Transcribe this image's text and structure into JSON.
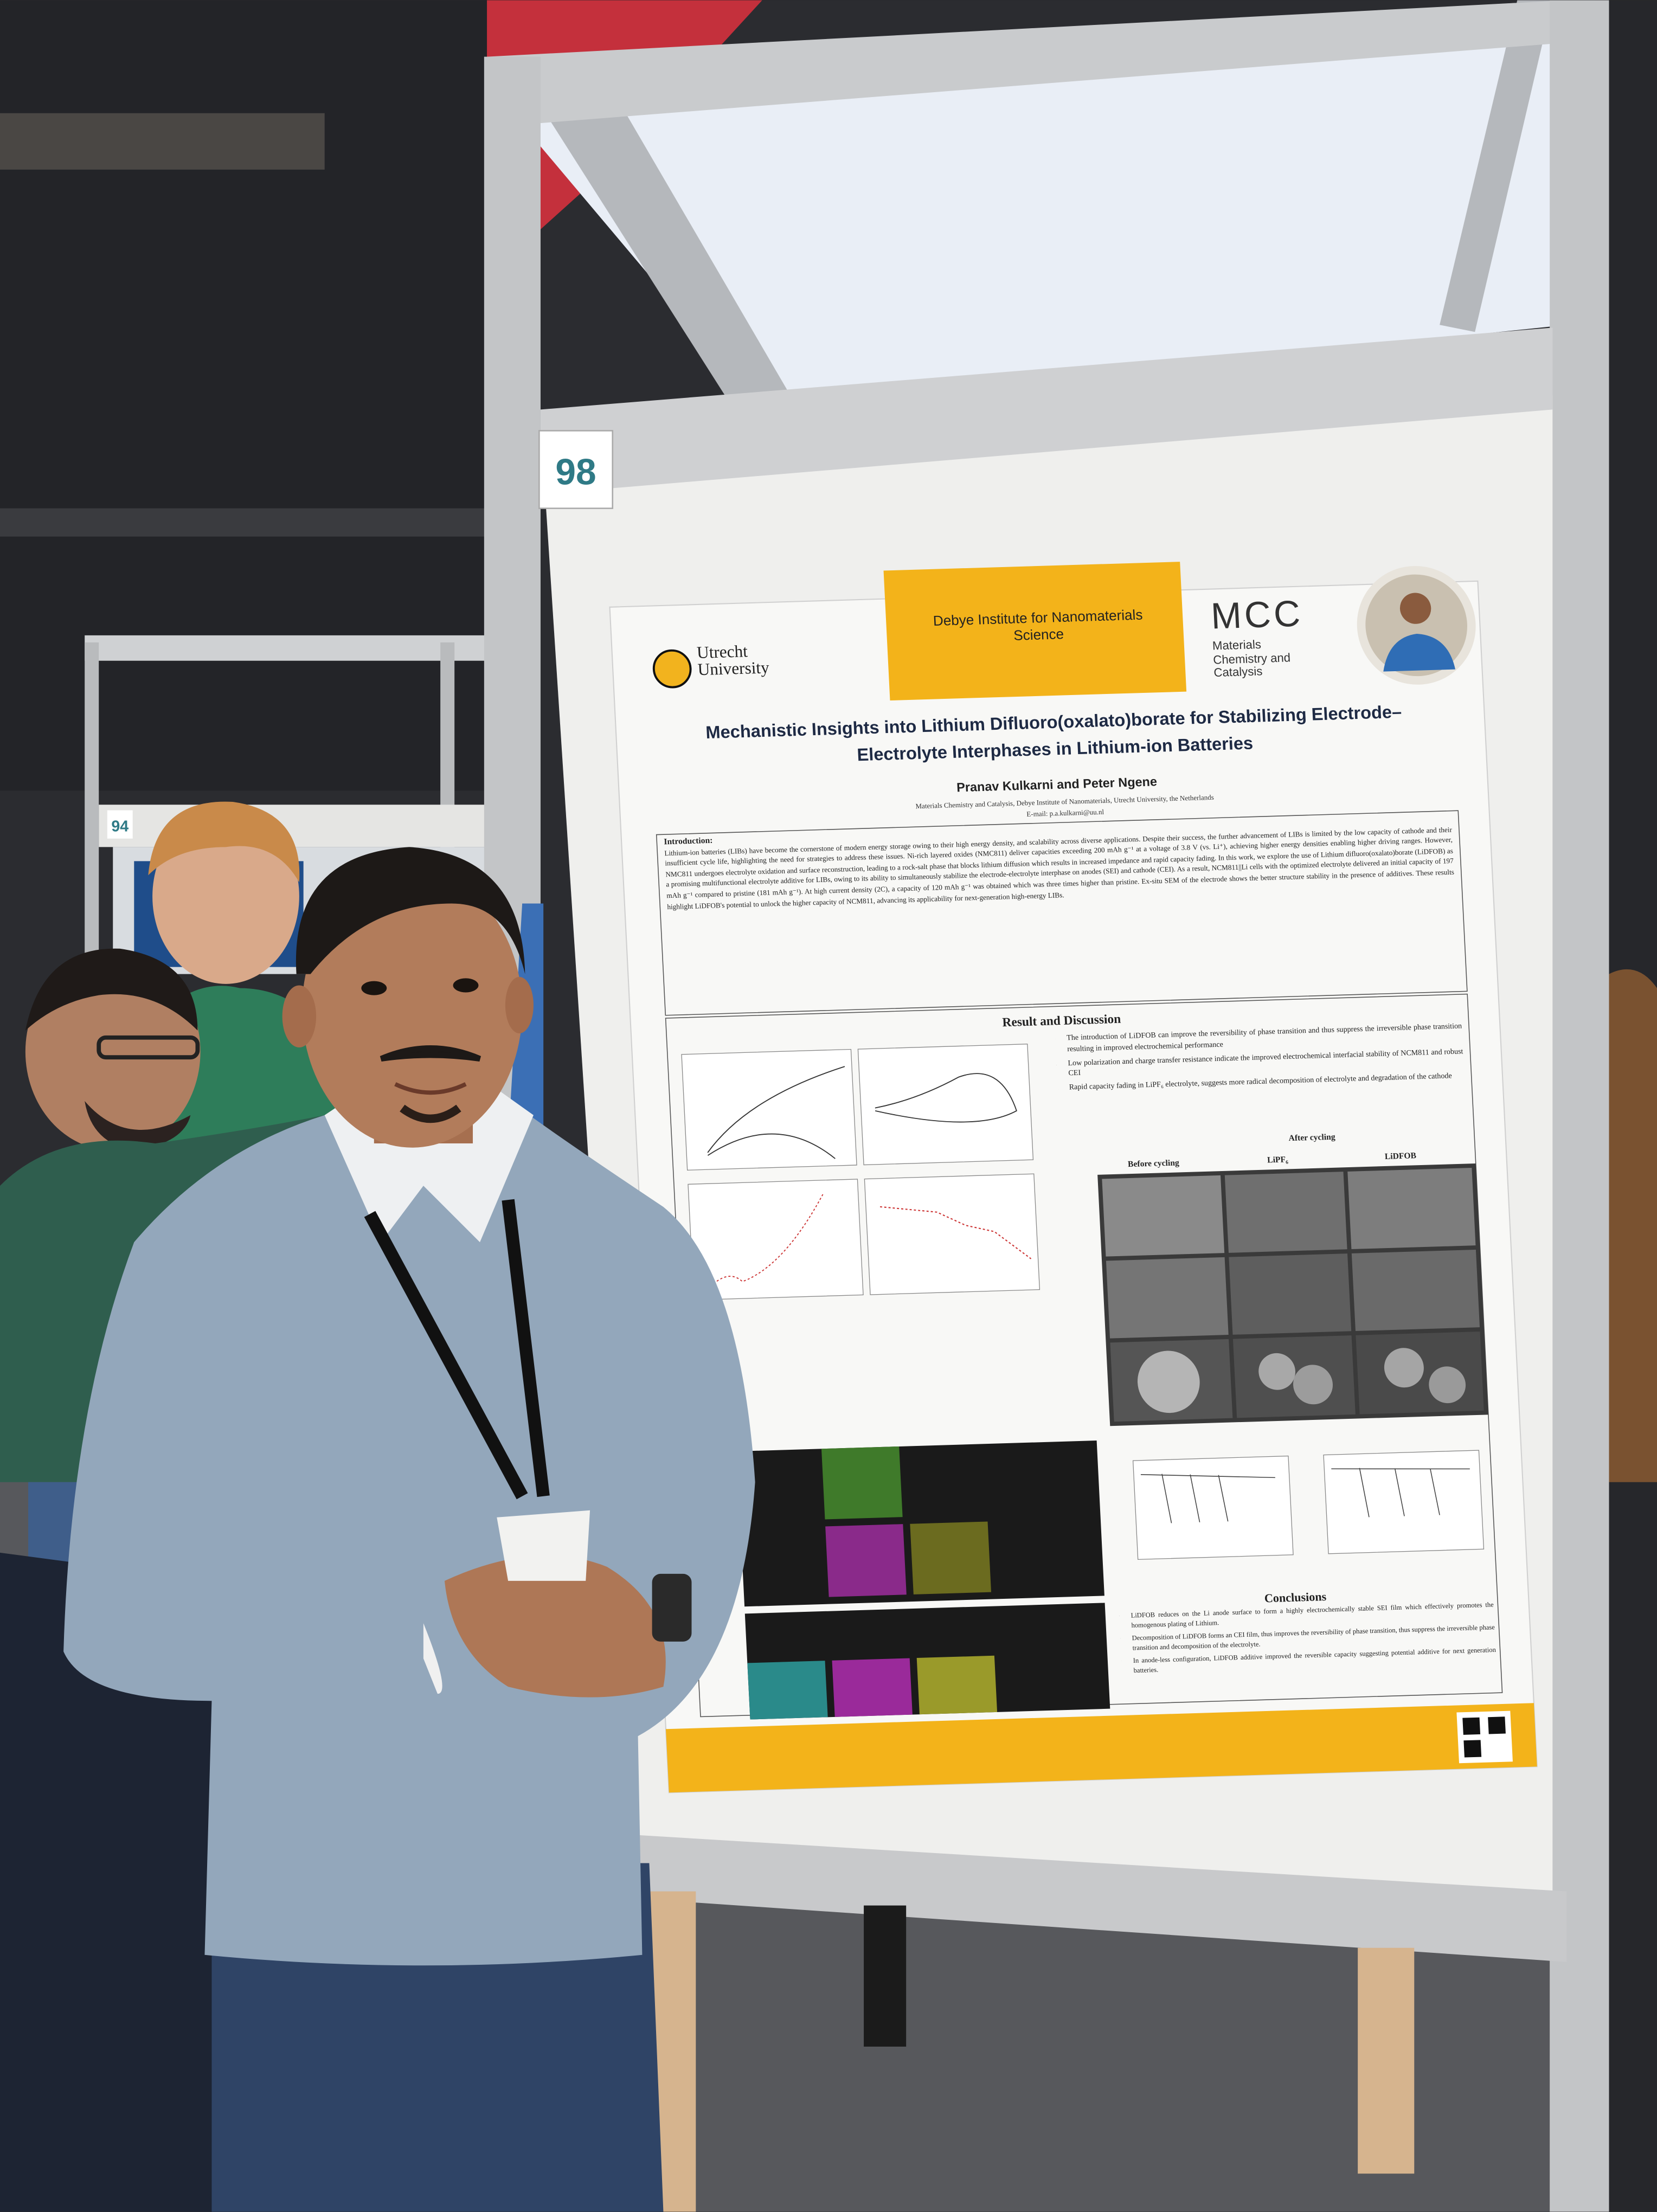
{
  "board_number": "98",
  "neighbor_board_number": "94",
  "poster": {
    "logos": {
      "university": "Utrecht University",
      "institute": "Debye Institute for Nanomaterials Science",
      "group_mark": "MCC",
      "group": "Materials Chemistry and Catalysis"
    },
    "title": "Mechanistic Insights into Lithium Difluoro(oxalato)borate for Stabilizing Electrode–Electrolyte Interphases in Lithium-ion Batteries",
    "authors": "Pranav Kulkarni and Peter Ngene",
    "affiliation": "Materials Chemistry and Catalysis, Debye Institute of Nanomaterials, Utrecht University, the Netherlands",
    "email": "E-mail: p.a.kulkarni@uu.nl",
    "introduction": {
      "heading": "Introduction:",
      "text": "Lithium-ion batteries (LIBs) have become the cornerstone of modern energy storage owing to their high energy density, and scalability across diverse applications. Despite their success, the further advancement of LIBs is limited by the low capacity of cathode and their insufficient cycle life, highlighting the need for strategies to address these issues. Ni-rich layered oxides (NMC811) deliver capacities exceeding 200 mAh g⁻¹ at a voltage of 3.8 V (vs. Li⁺), achieving higher energy densities enabling higher driving ranges. However, NMC811 undergoes electrolyte oxidation and surface reconstruction, leading to a rock-salt phase that blocks lithium diffusion which results in increased impedance and rapid capacity fading. In this work, we explore the use of Lithium difluoro(oxalato)borate (LiDFOB) as a promising multifunctional electrolyte additive for LIBs, owing to its ability to simultaneously stabilize the electrode-electrolyte interphase on anodes (SEI) and cathode (CEI). As a result, NCM811||Li cells with the optimized electrolyte delivered an initial capacity of 197 mAh g⁻¹ compared to pristine (181 mAh g⁻¹). At high current density (2C), a capacity of 120 mAh g⁻¹ was obtained which was three times higher than pristine. Ex-situ SEM of the electrode shows the better structure stability in the presence of additives. These results highlight LiDFOB's potential to unlock the higher capacity of NCM811, advancing its applicability for next-generation high-energy LIBs."
    },
    "results": {
      "heading": "Result and Discussion",
      "bullets": [
        "The introduction of LiDFOB can improve the reversibility of phase transition and thus suppress the irreversible phase transition resulting in improved electrochemical performance",
        "Low polarization and charge transfer resistance indicate the improved electrochemical interfacial stability of NCM811 and robust CEI",
        "Rapid capacity fading in LiPF₆ electrolyte, suggests more radical decomposition of electrolyte and degradation of the cathode"
      ]
    },
    "sem_headers": {
      "before": "Before cycling",
      "after": "After cycling",
      "lipf6": "LiPF₆",
      "lidfob": "LiDFOB"
    },
    "conclusions": {
      "heading": "Conclusions",
      "bullets": [
        "LiDFOB reduces on the Li anode surface to form a highly electrochemically stable SEI film which effectively promotes the homogenous plating of Lithium.",
        "Decomposition of LiDFOB forms an CEI film, thus improves the reversibility of phase transition, thus suppress the irreversible phase transition and decomposition of the electrolyte.",
        "In anode-less configuration, LiDFOB additive improved the reversible capacity suggesting potential additive for next generation batteries."
      ]
    }
  }
}
